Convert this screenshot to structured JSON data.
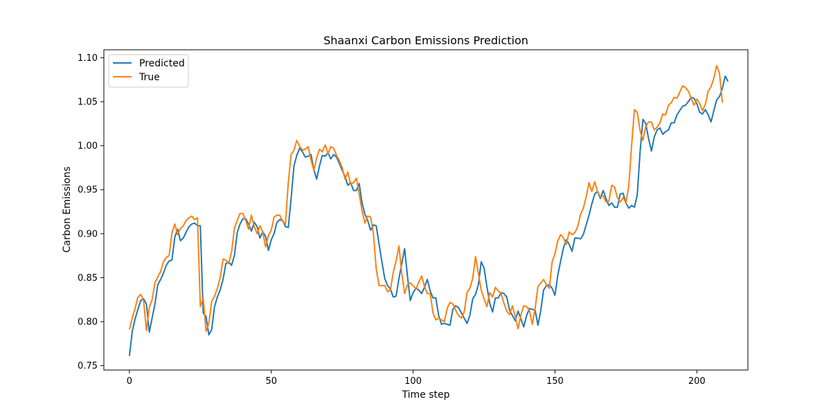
{
  "chart_data": {
    "type": "line",
    "title": "Shaanxi Carbon Emissions Prediction",
    "xlabel": "Time step",
    "ylabel": "Carbon Emissions",
    "xlim": [
      -9,
      218
    ],
    "ylim": [
      0.745,
      1.109
    ],
    "xticks": [
      0,
      50,
      100,
      150,
      200
    ],
    "yticks": [
      0.75,
      0.8,
      0.85,
      0.9,
      0.95,
      1.0,
      1.05,
      1.1
    ],
    "xtick_labels": [
      "0",
      "50",
      "100",
      "150",
      "200"
    ],
    "ytick_labels": [
      "0.75",
      "0.80",
      "0.85",
      "0.90",
      "0.95",
      "1.00",
      "1.05",
      "1.10"
    ],
    "grid": false,
    "legend_position": "top-left",
    "series": [
      {
        "name": "Predicted",
        "color": "#1f77b4",
        "values": [
          0.761,
          0.789,
          0.803,
          0.814,
          0.824,
          0.826,
          0.82,
          0.788,
          0.804,
          0.82,
          0.842,
          0.848,
          0.855,
          0.864,
          0.869,
          0.87,
          0.896,
          0.905,
          0.892,
          0.895,
          0.902,
          0.908,
          0.911,
          0.912,
          0.909,
          0.909,
          0.81,
          0.806,
          0.785,
          0.791,
          0.817,
          0.828,
          0.836,
          0.848,
          0.866,
          0.868,
          0.864,
          0.875,
          0.901,
          0.911,
          0.917,
          0.917,
          0.911,
          0.903,
          0.913,
          0.908,
          0.895,
          0.902,
          0.897,
          0.881,
          0.893,
          0.9,
          0.913,
          0.916,
          0.915,
          0.908,
          0.907,
          0.94,
          0.977,
          0.989,
          0.997,
          0.993,
          0.987,
          0.988,
          0.99,
          0.973,
          0.962,
          0.977,
          0.989,
          0.988,
          0.992,
          0.985,
          0.99,
          0.987,
          0.98,
          0.972,
          0.965,
          0.955,
          0.958,
          0.949,
          0.949,
          0.957,
          0.935,
          0.922,
          0.915,
          0.904,
          0.91,
          0.909,
          0.888,
          0.868,
          0.849,
          0.841,
          0.837,
          0.828,
          0.829,
          0.849,
          0.866,
          0.883,
          0.852,
          0.824,
          0.833,
          0.838,
          0.836,
          0.832,
          0.839,
          0.848,
          0.835,
          0.827,
          0.827,
          0.807,
          0.797,
          0.798,
          0.797,
          0.796,
          0.814,
          0.818,
          0.816,
          0.81,
          0.804,
          0.798,
          0.807,
          0.826,
          0.831,
          0.842,
          0.868,
          0.861,
          0.84,
          0.821,
          0.811,
          0.827,
          0.827,
          0.833,
          0.832,
          0.828,
          0.813,
          0.807,
          0.801,
          0.812,
          0.803,
          0.794,
          0.807,
          0.815,
          0.814,
          0.813,
          0.796,
          0.813,
          0.836,
          0.841,
          0.842,
          0.838,
          0.83,
          0.853,
          0.869,
          0.884,
          0.893,
          0.888,
          0.88,
          0.895,
          0.895,
          0.894,
          0.899,
          0.91,
          0.921,
          0.934,
          0.945,
          0.948,
          0.94,
          0.949,
          0.94,
          0.932,
          0.935,
          0.93,
          0.93,
          0.945,
          0.946,
          0.935,
          0.929,
          0.932,
          0.93,
          0.944,
          0.993,
          1.03,
          1.025,
          1.008,
          0.994,
          1.01,
          1.018,
          1.02,
          1.013,
          1.016,
          1.018,
          1.026,
          1.026,
          1.035,
          1.04,
          1.045,
          1.046,
          1.05,
          1.055,
          1.054,
          1.048,
          1.038,
          1.036,
          1.041,
          1.035,
          1.027,
          1.04,
          1.052,
          1.056,
          1.065,
          1.079,
          1.073
        ]
      },
      {
        "name": "True",
        "color": "#ff7f0e",
        "values": [
          0.791,
          0.804,
          0.815,
          0.828,
          0.831,
          0.824,
          0.79,
          0.816,
          0.825,
          0.844,
          0.851,
          0.857,
          0.868,
          0.873,
          0.875,
          0.901,
          0.911,
          0.899,
          0.906,
          0.909,
          0.915,
          0.918,
          0.92,
          0.916,
          0.918,
          0.817,
          0.827,
          0.789,
          0.798,
          0.823,
          0.829,
          0.838,
          0.85,
          0.871,
          0.87,
          0.866,
          0.879,
          0.906,
          0.915,
          0.923,
          0.923,
          0.915,
          0.905,
          0.921,
          0.908,
          0.9,
          0.909,
          0.902,
          0.885,
          0.898,
          0.904,
          0.919,
          0.921,
          0.921,
          0.914,
          0.911,
          0.958,
          0.99,
          0.995,
          1.006,
          0.999,
          0.995,
          0.996,
          0.999,
          0.984,
          0.972,
          0.986,
          0.996,
          0.993,
          1.001,
          0.991,
          0.999,
          0.997,
          0.989,
          0.983,
          0.975,
          0.962,
          0.97,
          0.956,
          0.958,
          0.963,
          0.945,
          0.926,
          0.912,
          0.92,
          0.919,
          0.9,
          0.86,
          0.841,
          0.841,
          0.841,
          0.834,
          0.836,
          0.856,
          0.869,
          0.886,
          0.855,
          0.832,
          0.842,
          0.844,
          0.841,
          0.837,
          0.845,
          0.852,
          0.84,
          0.832,
          0.832,
          0.81,
          0.802,
          0.804,
          0.802,
          0.8,
          0.815,
          0.822,
          0.82,
          0.813,
          0.807,
          0.804,
          0.811,
          0.833,
          0.838,
          0.849,
          0.874,
          0.855,
          0.836,
          0.826,
          0.817,
          0.833,
          0.828,
          0.839,
          0.835,
          0.832,
          0.821,
          0.812,
          0.808,
          0.818,
          0.806,
          0.792,
          0.808,
          0.818,
          0.817,
          0.813,
          0.797,
          0.815,
          0.84,
          0.844,
          0.848,
          0.842,
          0.838,
          0.868,
          0.877,
          0.892,
          0.899,
          0.895,
          0.888,
          0.902,
          0.899,
          0.901,
          0.908,
          0.922,
          0.929,
          0.942,
          0.958,
          0.948,
          0.959,
          0.948,
          0.942,
          0.943,
          0.936,
          0.937,
          0.955,
          0.953,
          0.941,
          0.936,
          0.941,
          0.935,
          0.954,
          1.0,
          1.041,
          1.038,
          1.017,
          1.006,
          1.022,
          1.027,
          1.027,
          1.018,
          1.021,
          1.026,
          1.036,
          1.035,
          1.046,
          1.049,
          1.055,
          1.054,
          1.061,
          1.068,
          1.066,
          1.062,
          1.054,
          1.046,
          1.053,
          1.048,
          1.04,
          1.047,
          1.062,
          1.067,
          1.077,
          1.091,
          1.082,
          1.049
        ]
      }
    ]
  }
}
